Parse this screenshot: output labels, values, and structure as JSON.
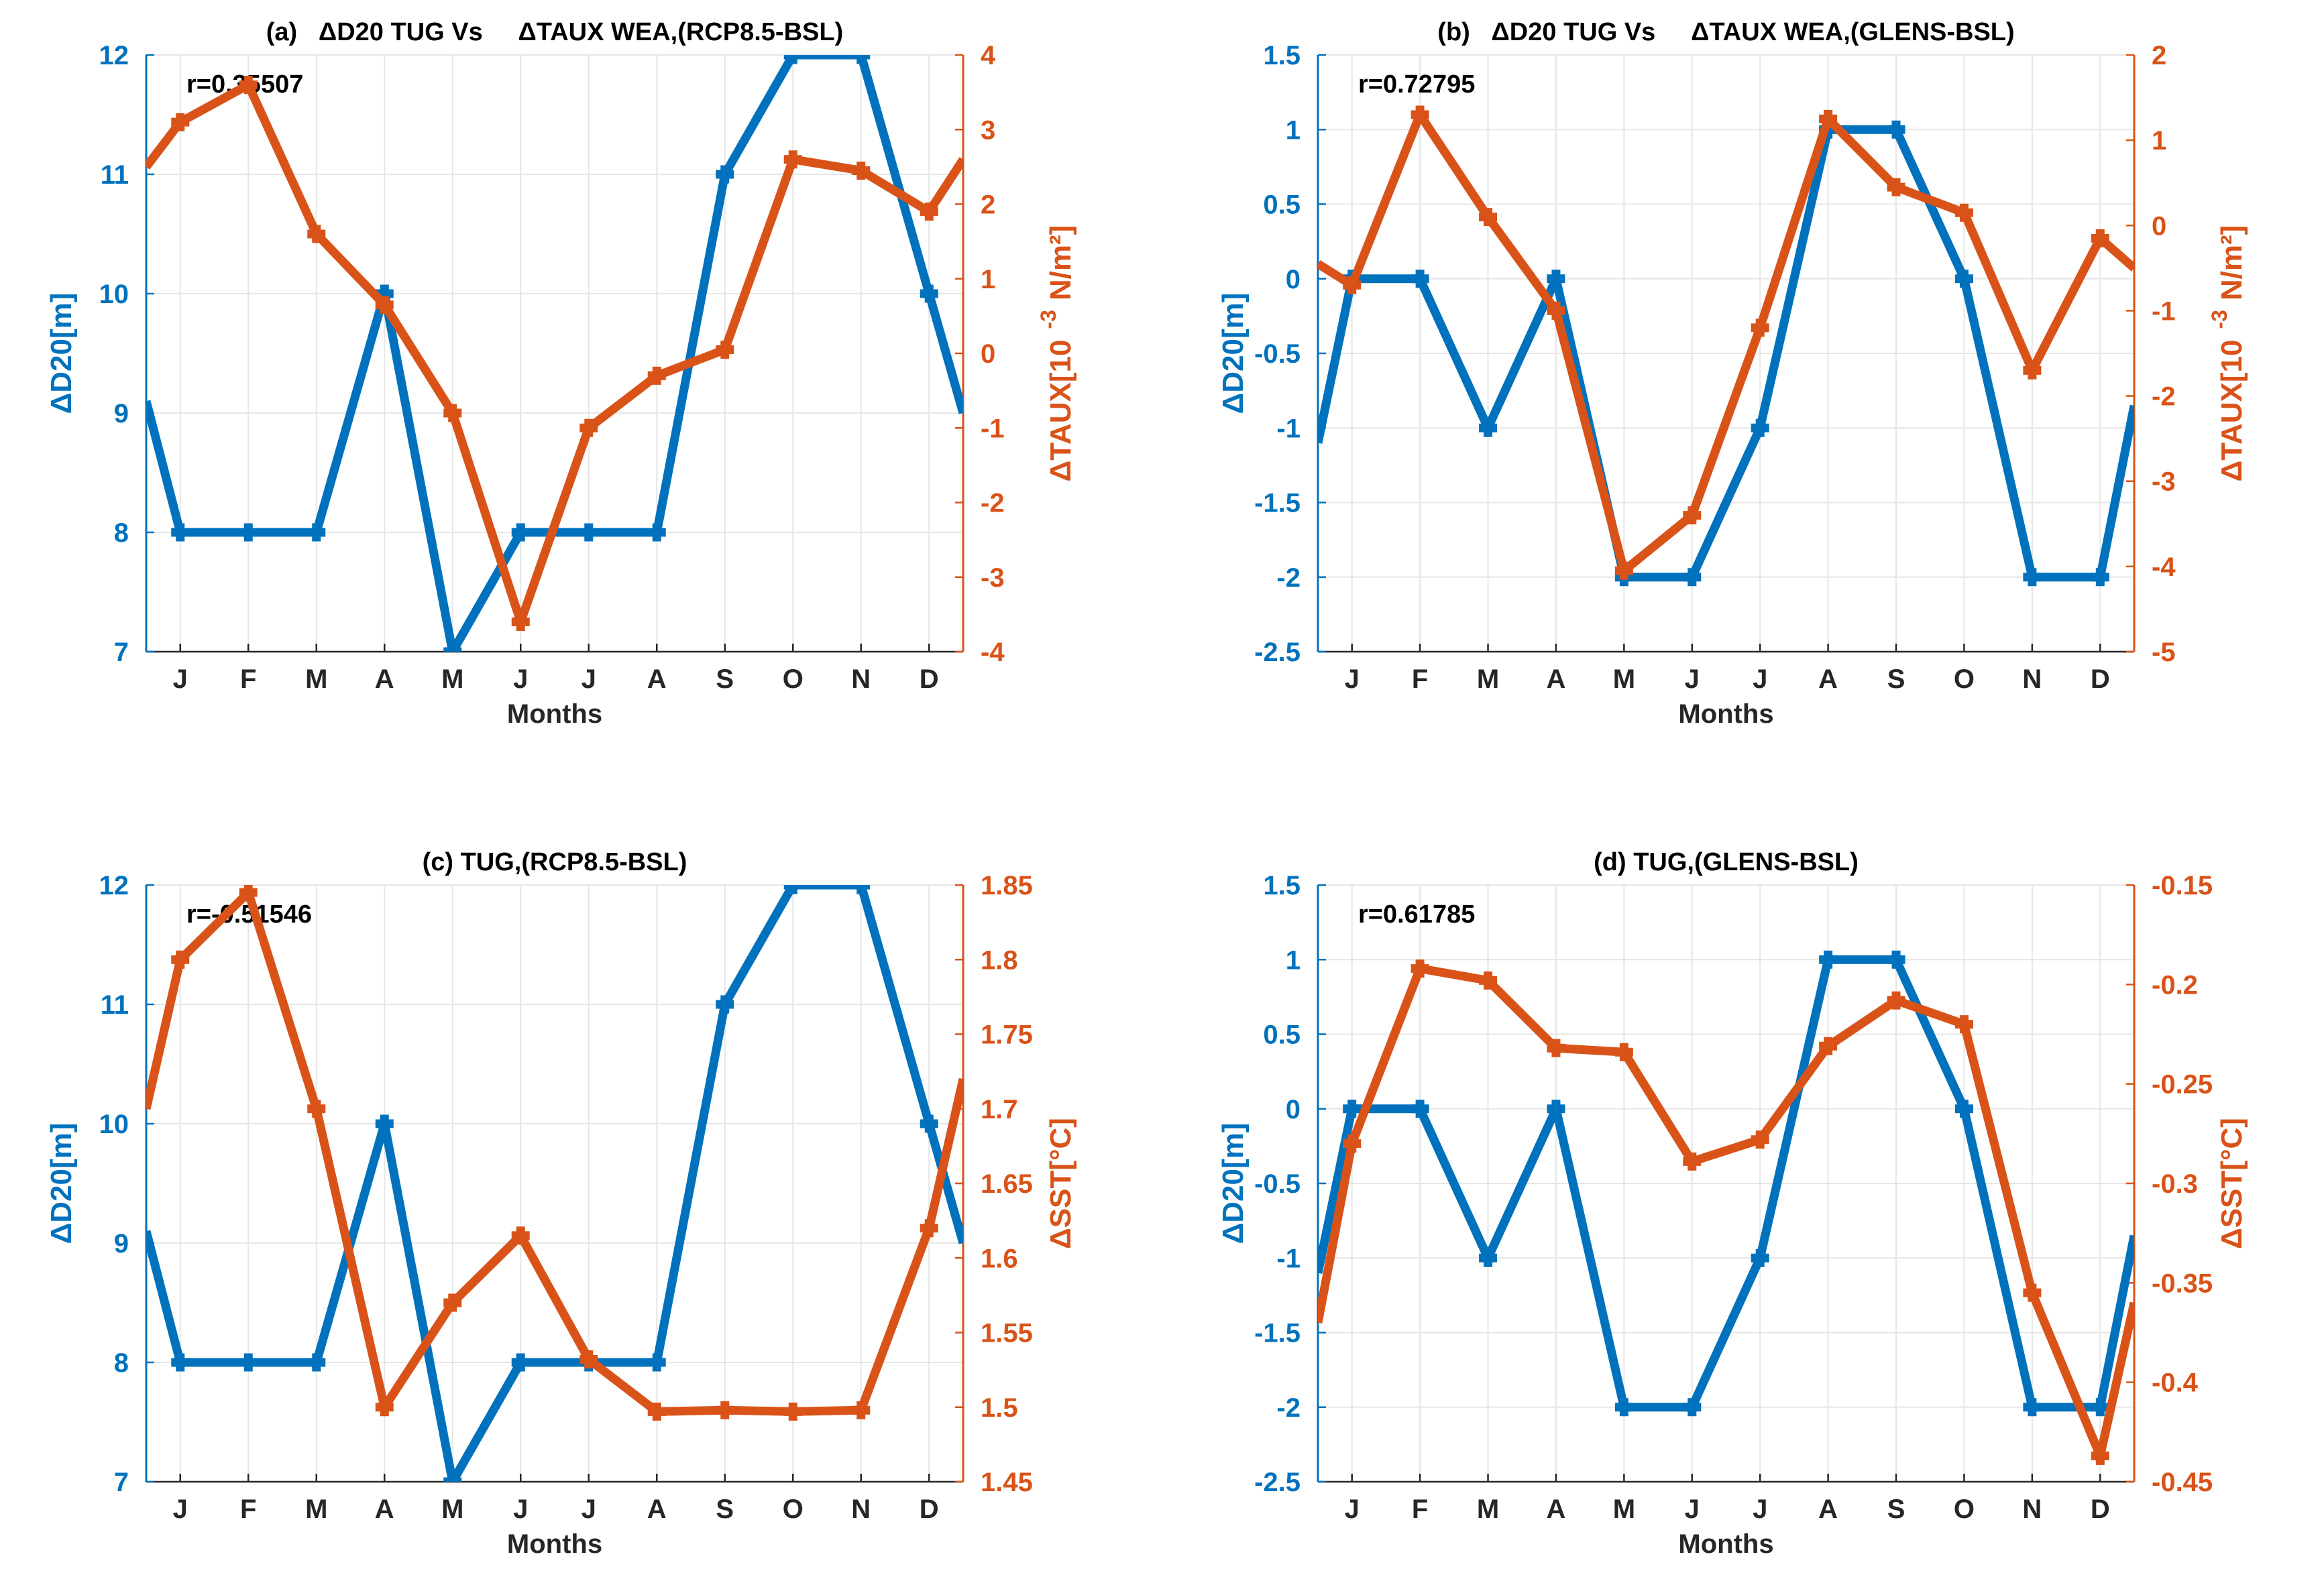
{
  "colors": {
    "blue": "#0072BD",
    "orange": "#D95319",
    "grid": "#e6e6e6",
    "axis": "#262626"
  },
  "chart_data": [
    {
      "type": "line",
      "title": "(a)   ΔD20 TUG Vs     ΔTAUX WEA,(RCP8.5-BSL)",
      "xlabel": "Months",
      "categories": [
        "J",
        "F",
        "M",
        "A",
        "M",
        "J",
        "J",
        "A",
        "S",
        "O",
        "N",
        "D"
      ],
      "x": [
        0.5,
        1,
        2,
        3,
        4,
        5,
        6,
        7,
        8,
        9,
        10,
        11,
        12,
        12.5
      ],
      "annotation": "r=0.35507",
      "left_axis": {
        "label": "ΔD20[m]",
        "ylim": [
          7,
          12
        ],
        "ticks": [
          7,
          8,
          9,
          10,
          11,
          12
        ],
        "tick_labels": [
          "7",
          "8",
          "9",
          "10",
          "11",
          "12"
        ]
      },
      "right_axis": {
        "label": "ΔTAUX[10",
        "label_sup": "-3",
        "label_unit": "N/m²]",
        "ylim": [
          -4,
          4
        ],
        "ticks": [
          -4,
          -3,
          -2,
          -1,
          0,
          1,
          2,
          3,
          4
        ],
        "tick_labels": [
          "-4",
          "-3",
          "-2",
          "-1",
          "0",
          "1",
          "2",
          "3",
          "4"
        ]
      },
      "series": [
        {
          "name": "ΔD20",
          "axis": "left",
          "values": [
            9.1,
            8,
            8,
            8,
            10,
            7,
            8,
            8,
            8,
            11,
            12,
            12,
            10,
            9.0
          ]
        },
        {
          "name": "ΔTAUX",
          "axis": "right",
          "values": [
            2.5,
            3.1,
            3.6,
            1.6,
            0.65,
            -0.8,
            -3.6,
            -1.0,
            -0.3,
            0.05,
            2.6,
            2.45,
            1.9,
            2.6
          ]
        }
      ]
    },
    {
      "type": "line",
      "title": "(b)   ΔD20 TUG Vs     ΔTAUX WEA,(GLENS-BSL)",
      "xlabel": "Months",
      "categories": [
        "J",
        "F",
        "M",
        "A",
        "M",
        "J",
        "J",
        "A",
        "S",
        "O",
        "N",
        "D"
      ],
      "x": [
        0.5,
        1,
        2,
        3,
        4,
        5,
        6,
        7,
        8,
        9,
        10,
        11,
        12,
        12.5
      ],
      "annotation": "r=0.72795",
      "left_axis": {
        "label": "ΔD20[m]",
        "ylim": [
          -2.5,
          1.5
        ],
        "ticks": [
          -2.5,
          -2,
          -1.5,
          -1,
          -0.5,
          0,
          0.5,
          1,
          1.5
        ],
        "tick_labels": [
          "-2.5",
          "-2",
          "-1.5",
          "-1",
          "-0.5",
          "0",
          "0.5",
          "1",
          "1.5"
        ]
      },
      "right_axis": {
        "label": "ΔTAUX[10",
        "label_sup": "-3",
        "label_unit": "N/m²]",
        "ylim": [
          -5,
          2
        ],
        "ticks": [
          -5,
          -4,
          -3,
          -2,
          -1,
          0,
          1,
          2
        ],
        "tick_labels": [
          "-5",
          "-4",
          "-3",
          "-2",
          "-1",
          "0",
          "1",
          "2"
        ]
      },
      "series": [
        {
          "name": "ΔD20",
          "axis": "left",
          "values": [
            -1.1,
            0,
            0,
            -1,
            0,
            -2,
            -2,
            -1,
            1,
            1,
            0,
            -2,
            -2,
            -0.85
          ]
        },
        {
          "name": "ΔTAUX",
          "axis": "right",
          "values": [
            -0.45,
            -0.7,
            1.3,
            0.1,
            -1.0,
            -4.05,
            -3.4,
            -1.2,
            1.25,
            0.45,
            0.15,
            -1.7,
            -0.15,
            -0.5
          ]
        }
      ]
    },
    {
      "type": "line",
      "title": "(c) TUG,(RCP8.5-BSL)",
      "xlabel": "Months",
      "categories": [
        "J",
        "F",
        "M",
        "A",
        "M",
        "J",
        "J",
        "A",
        "S",
        "O",
        "N",
        "D"
      ],
      "x": [
        0.5,
        1,
        2,
        3,
        4,
        5,
        6,
        7,
        8,
        9,
        10,
        11,
        12,
        12.5
      ],
      "annotation": "r=-0.51546",
      "left_axis": {
        "label": "ΔD20[m]",
        "ylim": [
          7,
          12
        ],
        "ticks": [
          7,
          8,
          9,
          10,
          11,
          12
        ],
        "tick_labels": [
          "7",
          "8",
          "9",
          "10",
          "11",
          "12"
        ]
      },
      "right_axis": {
        "label": "ΔSST[°C]",
        "label_sup": "",
        "label_unit": "",
        "ylim": [
          1.45,
          1.85
        ],
        "ticks": [
          1.45,
          1.5,
          1.55,
          1.6,
          1.65,
          1.7,
          1.75,
          1.8,
          1.85
        ],
        "tick_labels": [
          "1.45",
          "1.5",
          "1.55",
          "1.6",
          "1.65",
          "1.7",
          "1.75",
          "1.8",
          "1.85"
        ]
      },
      "series": [
        {
          "name": "ΔD20",
          "axis": "left",
          "values": [
            9.1,
            8,
            8,
            8,
            10,
            7,
            8,
            8,
            8,
            11,
            12,
            12,
            10,
            9.0
          ]
        },
        {
          "name": "ΔSST",
          "axis": "right",
          "values": [
            1.7,
            1.8,
            1.845,
            1.7,
            1.5,
            1.57,
            1.615,
            1.532,
            1.497,
            1.498,
            1.497,
            1.498,
            1.62,
            1.72
          ]
        }
      ]
    },
    {
      "type": "line",
      "title": "(d) TUG,(GLENS-BSL)",
      "xlabel": "Months",
      "categories": [
        "J",
        "F",
        "M",
        "A",
        "M",
        "J",
        "J",
        "A",
        "S",
        "O",
        "N",
        "D"
      ],
      "x": [
        0.5,
        1,
        2,
        3,
        4,
        5,
        6,
        7,
        8,
        9,
        10,
        11,
        12,
        12.5
      ],
      "annotation": "r=0.61785",
      "left_axis": {
        "label": "ΔD20[m]",
        "ylim": [
          -2.5,
          1.5
        ],
        "ticks": [
          -2.5,
          -2,
          -1.5,
          -1,
          -0.5,
          0,
          0.5,
          1,
          1.5
        ],
        "tick_labels": [
          "-2.5",
          "-2",
          "-1.5",
          "-1",
          "-0.5",
          "0",
          "0.5",
          "1",
          "1.5"
        ]
      },
      "right_axis": {
        "label": "ΔSST[°C]",
        "label_sup": "",
        "label_unit": "",
        "ylim": [
          -0.45,
          -0.15
        ],
        "ticks": [
          -0.45,
          -0.4,
          -0.35,
          -0.3,
          -0.25,
          -0.2,
          -0.15
        ],
        "tick_labels": [
          "-0.45",
          "-0.4",
          "-0.35",
          "-0.3",
          "-0.25",
          "-0.2",
          "-0.15"
        ]
      },
      "series": [
        {
          "name": "ΔD20",
          "axis": "left",
          "values": [
            -1.1,
            0,
            0,
            -1,
            0,
            -2,
            -2,
            -1,
            1,
            1,
            0,
            -2,
            -2,
            -0.85
          ]
        },
        {
          "name": "ΔSST",
          "axis": "right",
          "values": [
            -0.37,
            -0.28,
            -0.192,
            -0.198,
            -0.232,
            -0.234,
            -0.289,
            -0.278,
            -0.231,
            -0.208,
            -0.22,
            -0.355,
            -0.437,
            -0.36
          ]
        }
      ]
    }
  ]
}
